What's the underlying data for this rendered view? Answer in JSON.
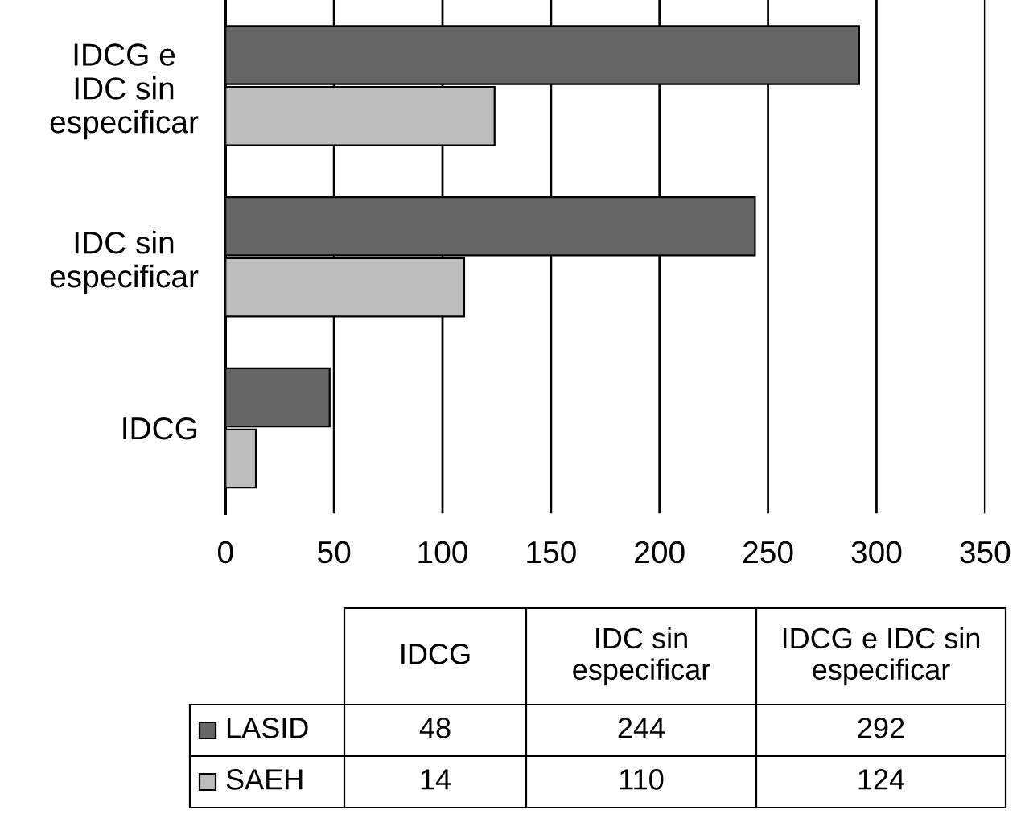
{
  "chart_data": [
    {
      "type": "bar",
      "orientation": "horizontal",
      "categories": [
        "IDCG e IDC sin especificar",
        "IDC sin especificar",
        "IDCG"
      ],
      "series": [
        {
          "name": "LASID",
          "color": "#666666",
          "values": [
            292,
            244,
            48
          ]
        },
        {
          "name": "SAEH",
          "color": "#bdbdbd",
          "values": [
            124,
            110,
            14
          ]
        }
      ],
      "xlim": [
        0,
        350
      ],
      "xticks": [
        0,
        50,
        100,
        150,
        200,
        250,
        300,
        350
      ],
      "grid": "x",
      "legend": "bottom"
    },
    {
      "type": "other",
      "categories": [
        "IDCG",
        "IDC sin especificar",
        "IDCG e IDC sin especificar"
      ],
      "series": [
        {
          "values": [
            48,
            244,
            292
          ]
        },
        {
          "values": [
            14,
            110,
            124
          ]
        }
      ],
      "data_labels": true
    }
  ]
}
